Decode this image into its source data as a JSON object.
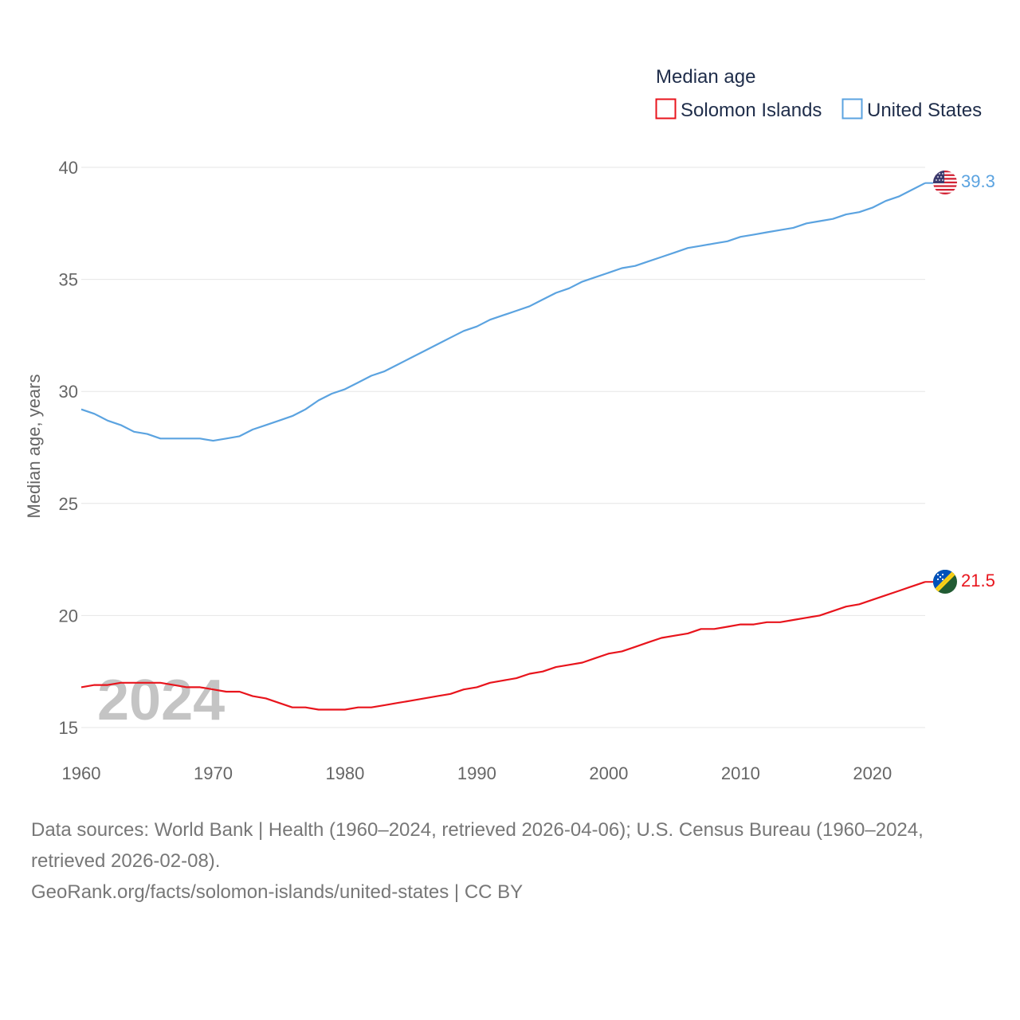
{
  "chart_data": {
    "type": "line",
    "legend": {
      "title": "Median age",
      "position": "top-right"
    },
    "ylabel": "Median age, years",
    "xlabel": "",
    "ylim": [
      15,
      40
    ],
    "xlim": [
      1960,
      2024
    ],
    "yticks": [
      "15",
      "20",
      "25",
      "30",
      "35",
      "40"
    ],
    "xticks": [
      "1960",
      "1970",
      "1980",
      "1990",
      "2000",
      "2010",
      "2020"
    ],
    "year_label": "2024",
    "grid": true,
    "x": [
      1960,
      1961,
      1962,
      1963,
      1964,
      1965,
      1966,
      1967,
      1968,
      1969,
      1970,
      1971,
      1972,
      1973,
      1974,
      1975,
      1976,
      1977,
      1978,
      1979,
      1980,
      1981,
      1982,
      1983,
      1984,
      1985,
      1986,
      1987,
      1988,
      1989,
      1990,
      1991,
      1992,
      1993,
      1994,
      1995,
      1996,
      1997,
      1998,
      1999,
      2000,
      2001,
      2002,
      2003,
      2004,
      2005,
      2006,
      2007,
      2008,
      2009,
      2010,
      2011,
      2012,
      2013,
      2014,
      2015,
      2016,
      2017,
      2018,
      2019,
      2020,
      2021,
      2022,
      2023,
      2024
    ],
    "series": [
      {
        "name": "Solomon Islands",
        "color": "#e8141c",
        "end_label": "21.5",
        "flag_icon": "solomon-islands-flag-icon",
        "values": [
          16.8,
          16.9,
          16.9,
          17.0,
          17.0,
          17.0,
          17.0,
          16.9,
          16.8,
          16.8,
          16.7,
          16.6,
          16.6,
          16.4,
          16.3,
          16.1,
          15.9,
          15.9,
          15.8,
          15.8,
          15.8,
          15.9,
          15.9,
          16.0,
          16.1,
          16.2,
          16.3,
          16.4,
          16.5,
          16.7,
          16.8,
          17.0,
          17.1,
          17.2,
          17.4,
          17.5,
          17.7,
          17.8,
          17.9,
          18.1,
          18.3,
          18.4,
          18.6,
          18.8,
          19.0,
          19.1,
          19.2,
          19.4,
          19.4,
          19.5,
          19.6,
          19.6,
          19.7,
          19.7,
          19.8,
          19.9,
          20.0,
          20.2,
          20.4,
          20.5,
          20.7,
          20.9,
          21.1,
          21.3,
          21.5
        ]
      },
      {
        "name": "United States",
        "color": "#5ba3e0",
        "end_label": "39.3",
        "flag_icon": "united-states-flag-icon",
        "values": [
          29.2,
          29.0,
          28.7,
          28.5,
          28.2,
          28.1,
          27.9,
          27.9,
          27.9,
          27.9,
          27.8,
          27.9,
          28.0,
          28.3,
          28.5,
          28.7,
          28.9,
          29.2,
          29.6,
          29.9,
          30.1,
          30.4,
          30.7,
          30.9,
          31.2,
          31.5,
          31.8,
          32.1,
          32.4,
          32.7,
          32.9,
          33.2,
          33.4,
          33.6,
          33.8,
          34.1,
          34.4,
          34.6,
          34.9,
          35.1,
          35.3,
          35.5,
          35.6,
          35.8,
          36.0,
          36.2,
          36.4,
          36.5,
          36.6,
          36.7,
          36.9,
          37.0,
          37.1,
          37.2,
          37.3,
          37.5,
          37.6,
          37.7,
          37.9,
          38.0,
          38.2,
          38.5,
          38.7,
          39.0,
          39.3
        ]
      }
    ]
  },
  "footer": {
    "sources_line1": "Data sources: World Bank | Health (1960–2024, retrieved 2026-04-06); U.S. Census Bureau (1960–2024,",
    "sources_line2": "retrieved 2026-02-08).",
    "attribution": "GeoRank.org/facts/solomon-islands/united-states | CC BY"
  }
}
